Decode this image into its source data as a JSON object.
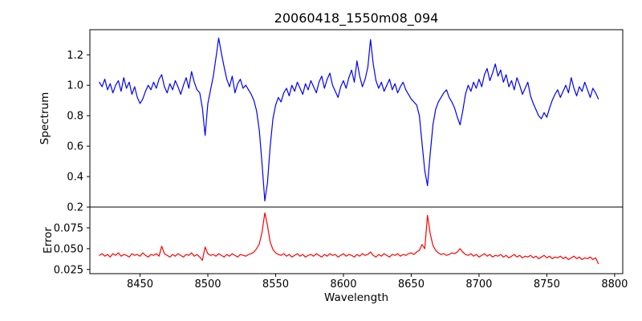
{
  "figure": {
    "title": "20060418_1550m08_094",
    "xlabel": "Wavelength",
    "ylabel_top": "Spectrum",
    "ylabel_bottom": "Error",
    "background": "#ffffff",
    "spectrum_color": "#0000ff",
    "error_color": "#ff0000"
  },
  "chart_data": [
    {
      "type": "line",
      "title": "20060418_1550m08_094",
      "xlabel": "Wavelength",
      "ylabel": "Spectrum",
      "grid": false,
      "legend": false,
      "xlim": [
        8413,
        8806
      ],
      "ylim": [
        0.2,
        1.365
      ],
      "xticks": [
        8450,
        8500,
        8550,
        8600,
        8650,
        8700,
        8750,
        8800
      ],
      "xtick_labels": [
        "8450",
        "8500",
        "8550",
        "8600",
        "8650",
        "8700",
        "8750",
        "8800"
      ],
      "yticks": [
        0.2,
        0.4,
        0.6,
        0.8,
        1.0,
        1.2
      ],
      "ytick_labels": [
        "0.2",
        "0.4",
        "0.6",
        "0.8",
        "1.0",
        "1.2"
      ],
      "x_start": 8420,
      "x_step": 2,
      "series": [
        {
          "name": "spectrum",
          "color": "#0000ff",
          "values": [
            1.02,
            0.99,
            1.04,
            0.97,
            1.01,
            0.95,
            1.0,
            1.03,
            0.96,
            1.05,
            0.98,
            1.02,
            0.94,
            0.99,
            0.92,
            0.88,
            0.91,
            0.96,
            1.0,
            0.97,
            1.02,
            0.98,
            1.04,
            1.07,
            0.99,
            0.95,
            1.01,
            0.97,
            1.03,
            0.99,
            0.94,
            1.0,
            1.05,
            0.98,
            1.09,
            1.02,
            0.97,
            0.95,
            0.85,
            0.67,
            0.88,
            0.97,
            1.06,
            1.18,
            1.31,
            1.21,
            1.12,
            1.04,
            0.99,
            1.06,
            0.95,
            1.01,
            1.04,
            0.98,
            1.0,
            0.97,
            0.94,
            0.9,
            0.83,
            0.7,
            0.48,
            0.24,
            0.36,
            0.6,
            0.78,
            0.87,
            0.92,
            0.89,
            0.95,
            0.98,
            0.93,
            1.0,
            0.96,
            1.02,
            0.98,
            0.94,
            1.01,
            0.97,
            1.03,
            0.99,
            0.95,
            1.02,
            1.06,
            0.98,
            1.04,
            1.08,
            1.0,
            0.96,
            0.92,
            0.99,
            1.03,
            0.98,
            1.05,
            1.1,
            1.02,
            1.16,
            1.06,
            0.99,
            1.04,
            1.12,
            1.3,
            1.14,
            1.03,
            0.98,
            1.02,
            0.96,
            1.0,
            1.04,
            0.97,
            1.01,
            0.95,
            0.99,
            1.02,
            0.97,
            0.94,
            0.91,
            0.89,
            0.87,
            0.8,
            0.62,
            0.44,
            0.34,
            0.55,
            0.74,
            0.84,
            0.89,
            0.92,
            0.95,
            0.97,
            0.92,
            0.89,
            0.85,
            0.79,
            0.74,
            0.83,
            0.94,
            1.0,
            0.96,
            1.02,
            0.98,
            1.04,
            0.99,
            1.07,
            1.11,
            1.03,
            1.08,
            1.14,
            1.06,
            1.1,
            1.02,
            1.07,
            0.99,
            1.03,
            0.97,
            1.05,
            1.0,
            0.94,
            0.98,
            1.02,
            0.93,
            0.88,
            0.84,
            0.8,
            0.78,
            0.82,
            0.79,
            0.85,
            0.9,
            0.94,
            0.97,
            0.92,
            0.96,
            1.0,
            0.95,
            1.05,
            0.98,
            0.93,
            0.99,
            0.96,
            1.02,
            0.97,
            0.92,
            0.98,
            0.95,
            0.91
          ]
        }
      ]
    },
    {
      "type": "line",
      "title": "",
      "xlabel": "Wavelength",
      "ylabel": "Error",
      "grid": false,
      "legend": false,
      "xlim": [
        8413,
        8806
      ],
      "ylim": [
        0.02,
        0.1
      ],
      "xticks": [
        8450,
        8500,
        8550,
        8600,
        8650,
        8700,
        8750,
        8800
      ],
      "xtick_labels": [
        "8450",
        "8500",
        "8550",
        "8600",
        "8650",
        "8700",
        "8750",
        "8800"
      ],
      "yticks": [
        0.025,
        0.05,
        0.075
      ],
      "ytick_labels": [
        "0.025",
        "0.050",
        "0.075"
      ],
      "x_start": 8420,
      "x_step": 2,
      "series": [
        {
          "name": "error",
          "color": "#ff0000",
          "values": [
            0.042,
            0.044,
            0.041,
            0.043,
            0.04,
            0.044,
            0.042,
            0.045,
            0.041,
            0.043,
            0.042,
            0.04,
            0.044,
            0.042,
            0.043,
            0.041,
            0.045,
            0.042,
            0.04,
            0.043,
            0.042,
            0.044,
            0.041,
            0.053,
            0.044,
            0.042,
            0.04,
            0.043,
            0.041,
            0.044,
            0.042,
            0.04,
            0.043,
            0.042,
            0.045,
            0.041,
            0.043,
            0.04,
            0.036,
            0.052,
            0.044,
            0.042,
            0.043,
            0.041,
            0.044,
            0.042,
            0.04,
            0.043,
            0.041,
            0.044,
            0.042,
            0.04,
            0.043,
            0.042,
            0.041,
            0.043,
            0.044,
            0.046,
            0.05,
            0.056,
            0.07,
            0.093,
            0.078,
            0.058,
            0.049,
            0.045,
            0.043,
            0.042,
            0.044,
            0.041,
            0.043,
            0.04,
            0.042,
            0.044,
            0.041,
            0.043,
            0.04,
            0.042,
            0.043,
            0.041,
            0.044,
            0.042,
            0.04,
            0.043,
            0.041,
            0.044,
            0.042,
            0.043,
            0.04,
            0.042,
            0.044,
            0.041,
            0.043,
            0.042,
            0.04,
            0.043,
            0.041,
            0.044,
            0.042,
            0.043,
            0.046,
            0.042,
            0.04,
            0.043,
            0.041,
            0.044,
            0.042,
            0.04,
            0.043,
            0.042,
            0.044,
            0.041,
            0.043,
            0.042,
            0.044,
            0.045,
            0.043,
            0.046,
            0.048,
            0.055,
            0.05,
            0.09,
            0.068,
            0.054,
            0.048,
            0.045,
            0.043,
            0.044,
            0.042,
            0.043,
            0.045,
            0.044,
            0.046,
            0.05,
            0.046,
            0.043,
            0.042,
            0.044,
            0.041,
            0.043,
            0.04,
            0.042,
            0.044,
            0.041,
            0.043,
            0.04,
            0.042,
            0.041,
            0.043,
            0.04,
            0.042,
            0.039,
            0.041,
            0.043,
            0.04,
            0.042,
            0.039,
            0.041,
            0.04,
            0.042,
            0.039,
            0.041,
            0.038,
            0.04,
            0.042,
            0.039,
            0.041,
            0.038,
            0.04,
            0.039,
            0.041,
            0.038,
            0.04,
            0.037,
            0.039,
            0.041,
            0.038,
            0.04,
            0.037,
            0.039,
            0.038,
            0.04,
            0.037,
            0.039,
            0.032
          ]
        }
      ]
    }
  ]
}
